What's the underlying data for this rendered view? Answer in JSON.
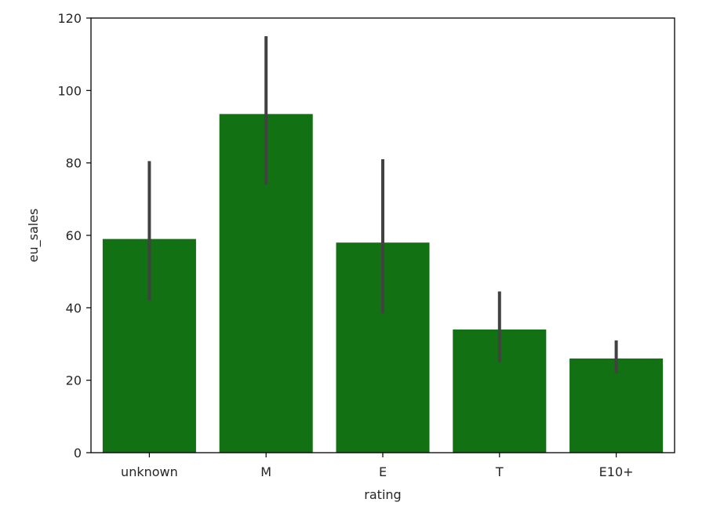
{
  "chart_data": {
    "type": "bar",
    "xlabel": "rating",
    "ylabel": "eu_sales",
    "categories": [
      "unknown",
      "M",
      "E",
      "T",
      "E10+"
    ],
    "values": [
      59,
      93.5,
      58,
      34,
      26
    ],
    "error_low": [
      42,
      74,
      38.5,
      25,
      22
    ],
    "error_high": [
      80.5,
      115,
      81,
      44.5,
      31
    ],
    "ylim": [
      0,
      120
    ],
    "yticks": [
      0,
      20,
      40,
      60,
      80,
      100,
      120
    ],
    "ytick_labels": [
      "0",
      "20",
      "40",
      "60",
      "80",
      "100",
      "120"
    ],
    "grid": false,
    "bar_color": "#127112",
    "error_color": "#424242"
  }
}
